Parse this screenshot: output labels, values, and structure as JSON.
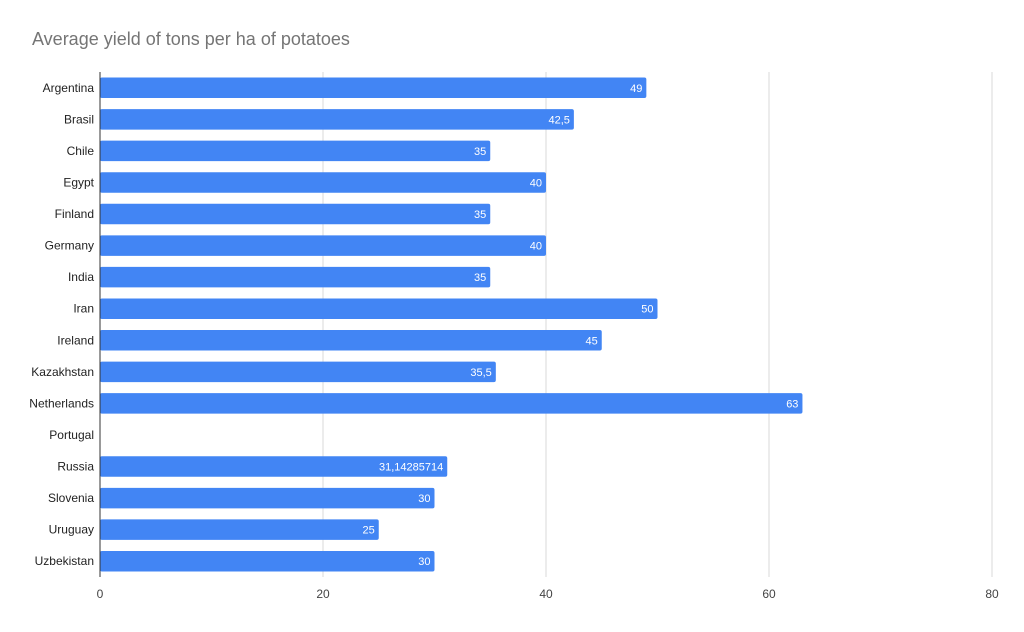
{
  "chart_data": {
    "type": "bar",
    "orientation": "horizontal",
    "title": "Average yield of tons per ha of potatoes",
    "categories": [
      "Argentina",
      "Brasil",
      "Chile",
      "Egypt",
      "Finland",
      "Germany",
      "India",
      "Iran",
      "Ireland",
      "Kazakhstan",
      "Netherlands",
      "Portugal",
      "Russia",
      "Slovenia",
      "Uruguay",
      "Uzbekistan"
    ],
    "values": [
      49,
      42.5,
      35,
      40,
      35,
      40,
      35,
      50,
      45,
      35.5,
      63,
      null,
      31.14285714,
      30,
      25,
      30
    ],
    "data_labels": [
      "49",
      "42,5",
      "35",
      "40",
      "35",
      "40",
      "35",
      "50",
      "45",
      "35,5",
      "63",
      "",
      "31,14285714",
      "30",
      "25",
      "30"
    ],
    "xlim": [
      0,
      80
    ],
    "x_ticks": [
      0,
      20,
      40,
      60,
      80
    ],
    "x_tick_labels": [
      "0",
      "20",
      "40",
      "60",
      "80"
    ],
    "grid": true,
    "legend": "none",
    "bar_color": "#4285f4"
  }
}
